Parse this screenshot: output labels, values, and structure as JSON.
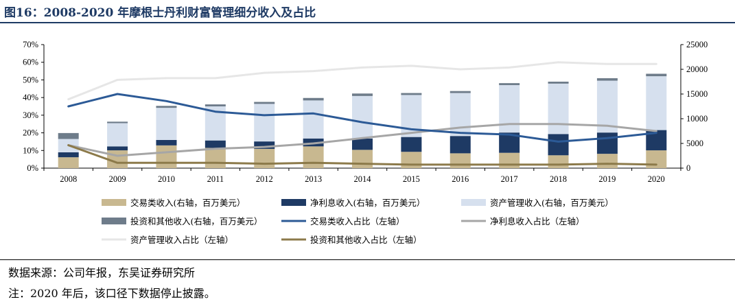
{
  "title": "图16：2008-2020 年摩根士丹利财富管理细分收入及占比",
  "source": "数据来源：公司年报，东吴证券研究所",
  "note": "注：2020 年后，该口径下数据停止披露。",
  "colors": {
    "trading_bar": "#c8b890",
    "nii_bar": "#1e3a64",
    "asset_mgmt_bar": "#d6e0ee",
    "invest_other_bar": "#6e7c8a",
    "trading_line": "#2c5a96",
    "nii_line": "#a6a6a6",
    "asset_mgmt_line": "#e6e6e6",
    "invest_other_line": "#8c7a4a",
    "title_color": "#1e3a64"
  },
  "chart_data": {
    "type": "bar",
    "stacked": true,
    "categories": [
      "2008",
      "2009",
      "2010",
      "2011",
      "2012",
      "2013",
      "2014",
      "2015",
      "2016",
      "2017",
      "2018",
      "2019",
      "2020"
    ],
    "left_axis": {
      "ylim": [
        0,
        0.7
      ],
      "ticks": [
        "0%",
        "10%",
        "20%",
        "30%",
        "40%",
        "50%",
        "60%",
        "70%"
      ]
    },
    "right_axis": {
      "ylim": [
        0,
        25000
      ],
      "ticks": [
        "0",
        "5000",
        "10000",
        "15000",
        "20000",
        "25000"
      ]
    },
    "bar_series": [
      {
        "name": "交易类收入(右轴，百万美元）",
        "axis": "right",
        "values": [
          2200,
          3600,
          4600,
          4100,
          3900,
          4400,
          3700,
          3300,
          3000,
          3100,
          2600,
          2900,
          3600
        ]
      },
      {
        "name": "净利息收入(右轴，百万美元）",
        "axis": "right",
        "values": [
          1000,
          800,
          1100,
          1500,
          1500,
          1600,
          2300,
          3000,
          3500,
          4100,
          4300,
          4300,
          4100
        ]
      },
      {
        "name": "资产管理收入(右轴，百万美元）",
        "axis": "right",
        "values": [
          2700,
          4700,
          6500,
          6900,
          7600,
          7700,
          8600,
          8500,
          8700,
          9600,
          10200,
          10500,
          10900
        ]
      },
      {
        "name": "投资和其他收入(右轴，百万美元）",
        "axis": "right",
        "values": [
          1200,
          300,
          400,
          400,
          400,
          500,
          500,
          400,
          400,
          400,
          400,
          500,
          500
        ]
      }
    ],
    "line_series": [
      {
        "name": "交易类收入占比（左轴）",
        "axis": "left",
        "values": [
          0.35,
          0.42,
          0.38,
          0.32,
          0.3,
          0.31,
          0.26,
          0.22,
          0.2,
          0.19,
          0.15,
          0.17,
          0.2
        ]
      },
      {
        "name": "净利息收入占比（左轴）",
        "axis": "left",
        "values": [
          0.13,
          0.07,
          0.09,
          0.11,
          0.12,
          0.14,
          0.17,
          0.2,
          0.23,
          0.25,
          0.25,
          0.24,
          0.21
        ]
      },
      {
        "name": "资产管理收入占比（左轴）",
        "axis": "left",
        "values": [
          0.39,
          0.5,
          0.51,
          0.51,
          0.54,
          0.55,
          0.57,
          0.58,
          0.56,
          0.57,
          0.6,
          0.59,
          0.59
        ]
      },
      {
        "name": "投资和其他收入占比（左轴）",
        "axis": "left",
        "values": [
          0.13,
          0.03,
          0.03,
          0.03,
          0.025,
          0.03,
          0.025,
          0.02,
          0.02,
          0.02,
          0.02,
          0.025,
          0.02
        ]
      }
    ],
    "legend": [
      {
        "label": "交易类收入(右轴，百万美元）",
        "kind": "bar",
        "color_key": "trading_bar"
      },
      {
        "label": "净利息收入(右轴，百万美元）",
        "kind": "bar",
        "color_key": "nii_bar"
      },
      {
        "label": "资产管理收入(右轴，百万美元）",
        "kind": "bar",
        "color_key": "asset_mgmt_bar"
      },
      {
        "label": "投资和其他收入(右轴，百万美元）",
        "kind": "bar",
        "color_key": "invest_other_bar"
      },
      {
        "label": "交易类收入占比（左轴）",
        "kind": "line",
        "color_key": "trading_line"
      },
      {
        "label": "净利息收入占比（左轴）",
        "kind": "line",
        "color_key": "nii_line"
      },
      {
        "label": "资产管理收入占比（左轴）",
        "kind": "line",
        "color_key": "asset_mgmt_line"
      },
      {
        "label": "投资和其他收入占比（左轴）",
        "kind": "line",
        "color_key": "invest_other_line"
      }
    ],
    "legend_position": "bottom",
    "grid": false
  }
}
